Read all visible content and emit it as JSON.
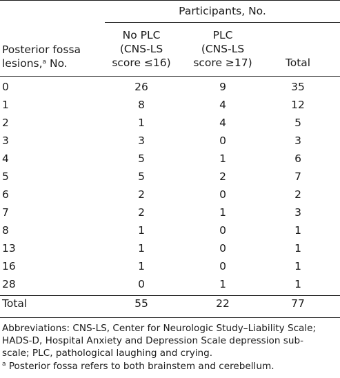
{
  "table": {
    "group_header": "Participants, No.",
    "row_header": {
      "line1": "Posterior fossa",
      "line2_prefix": "lesions,",
      "line2_sup": "a",
      "line2_suffix": " No."
    },
    "columns": [
      {
        "line1": "No PLC",
        "line2": "(CNS-LS",
        "line3": "score ≤16)"
      },
      {
        "line1": "PLC",
        "line2": "(CNS-LS",
        "line3": "score ≥17)"
      },
      {
        "line1": "",
        "line2": "",
        "line3": "Total"
      }
    ],
    "rows": [
      {
        "lesions": "0",
        "no_plc": "26",
        "plc": "9",
        "total": "35"
      },
      {
        "lesions": "1",
        "no_plc": "8",
        "plc": "4",
        "total": "12"
      },
      {
        "lesions": "2",
        "no_plc": "1",
        "plc": "4",
        "total": "5"
      },
      {
        "lesions": "3",
        "no_plc": "3",
        "plc": "0",
        "total": "3"
      },
      {
        "lesions": "4",
        "no_plc": "5",
        "plc": "1",
        "total": "6"
      },
      {
        "lesions": "5",
        "no_plc": "5",
        "plc": "2",
        "total": "7"
      },
      {
        "lesions": "6",
        "no_plc": "2",
        "plc": "0",
        "total": "2"
      },
      {
        "lesions": "7",
        "no_plc": "2",
        "plc": "1",
        "total": "3"
      },
      {
        "lesions": "8",
        "no_plc": "1",
        "plc": "0",
        "total": "1"
      },
      {
        "lesions": "13",
        "no_plc": "1",
        "plc": "0",
        "total": "1"
      },
      {
        "lesions": "16",
        "no_plc": "1",
        "plc": "0",
        "total": "1"
      },
      {
        "lesions": "28",
        "no_plc": "0",
        "plc": "1",
        "total": "1"
      },
      {
        "lesions": "Total",
        "no_plc": "55",
        "plc": "22",
        "total": "77"
      }
    ]
  },
  "footnotes": {
    "abbreviations_line1": "Abbreviations: CNS-LS, Center for Neurologic Study–Liability Scale;",
    "abbreviations_line2": "HADS-D, Hospital Anxiety and Depression Scale depression sub-",
    "abbreviations_line3": "scale; PLC, pathological laughing and crying.",
    "note_marker": "a",
    "note_text": " Posterior fossa refers to both brainstem and cerebellum."
  }
}
